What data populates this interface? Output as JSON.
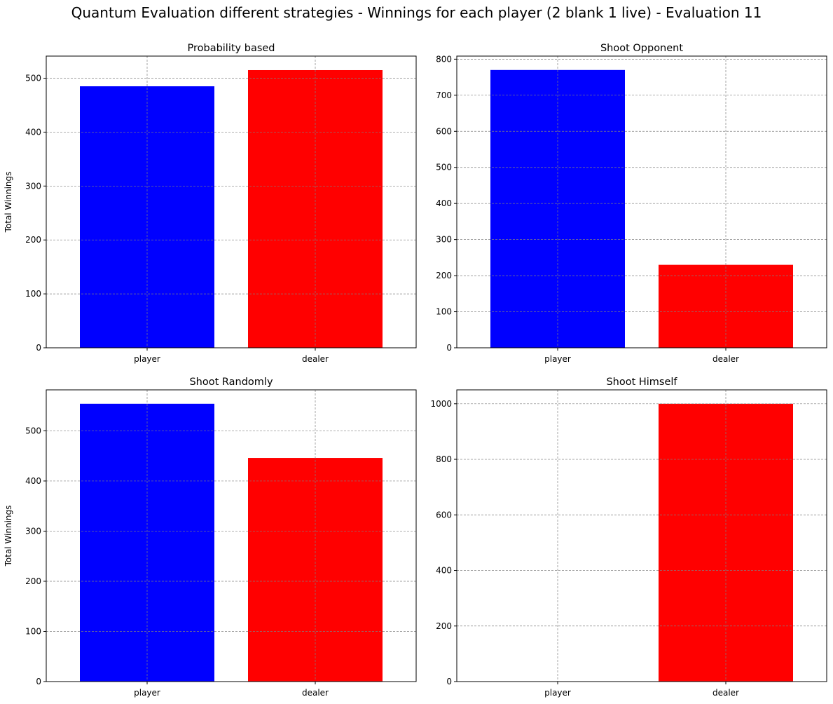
{
  "figure": {
    "title": "Quantum Evaluation different strategies - Winnings for each player (2 blank 1 live) - Evaluation 11"
  },
  "chart_data": [
    {
      "type": "bar",
      "title": "Probability based",
      "categories": [
        "player",
        "dealer"
      ],
      "values": [
        485,
        515
      ],
      "colors": [
        "#0000ff",
        "#ff0000"
      ],
      "xlabel": "",
      "ylabel": "Total Winnings",
      "ylim": [
        0,
        541
      ],
      "yticks": [
        0,
        100,
        200,
        300,
        400,
        500
      ],
      "grid": true
    },
    {
      "type": "bar",
      "title": "Shoot Opponent",
      "categories": [
        "player",
        "dealer"
      ],
      "values": [
        770,
        230
      ],
      "colors": [
        "#0000ff",
        "#ff0000"
      ],
      "xlabel": "",
      "ylabel": "",
      "ylim": [
        0,
        808.5
      ],
      "yticks": [
        0,
        100,
        200,
        300,
        400,
        500,
        600,
        700,
        800
      ],
      "grid": true
    },
    {
      "type": "bar",
      "title": "Shoot Randomly",
      "categories": [
        "player",
        "dealer"
      ],
      "values": [
        554,
        446
      ],
      "colors": [
        "#0000ff",
        "#ff0000"
      ],
      "xlabel": "",
      "ylabel": "Total Winnings",
      "ylim": [
        0,
        581.7
      ],
      "yticks": [
        0,
        100,
        200,
        300,
        400,
        500
      ],
      "grid": true
    },
    {
      "type": "bar",
      "title": "Shoot Himself",
      "categories": [
        "player",
        "dealer"
      ],
      "values": [
        0,
        1000
      ],
      "colors": [
        "#0000ff",
        "#ff0000"
      ],
      "xlabel": "",
      "ylabel": "",
      "ylim": [
        0,
        1050
      ],
      "yticks": [
        0,
        200,
        400,
        600,
        800,
        1000
      ],
      "grid": true
    }
  ]
}
